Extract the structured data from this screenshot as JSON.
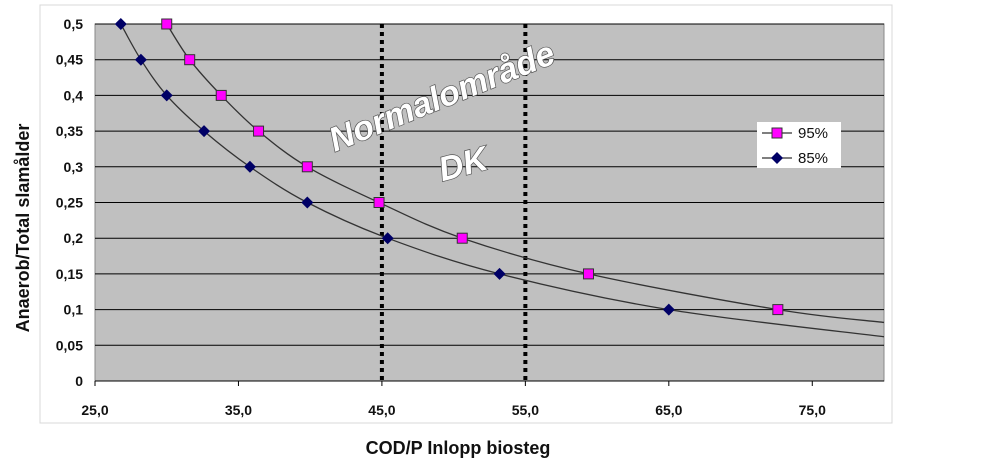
{
  "chart_data": {
    "type": "scatter",
    "title": "",
    "xlabel": "COD/P Inlopp biosteg",
    "ylabel": "Anaerob/Total slamålder",
    "xlim": [
      25,
      80
    ],
    "ylim": [
      0,
      0.5
    ],
    "x_ticks": [
      "25,0",
      "35,0",
      "45,0",
      "55,0",
      "65,0",
      "75,0"
    ],
    "y_ticks": [
      "0",
      "0,05",
      "0,1",
      "0,15",
      "0,2",
      "0,25",
      "0,3",
      "0,35",
      "0,4",
      "0,45",
      "0,5"
    ],
    "grid": "horizontal",
    "legend_position": "right",
    "series": [
      {
        "name": "95%",
        "marker": "square",
        "color": "#ff00ff",
        "points": [
          [
            30.0,
            0.5
          ],
          [
            31.6,
            0.45
          ],
          [
            33.8,
            0.4
          ],
          [
            36.4,
            0.35
          ],
          [
            39.8,
            0.3
          ],
          [
            44.8,
            0.25
          ],
          [
            50.6,
            0.2
          ],
          [
            59.4,
            0.15
          ],
          [
            72.6,
            0.1
          ]
        ],
        "curve_end": [
          80,
          0.082
        ]
      },
      {
        "name": "85%",
        "marker": "diamond",
        "color": "#000066",
        "points": [
          [
            26.8,
            0.5
          ],
          [
            28.2,
            0.45
          ],
          [
            30.0,
            0.4
          ],
          [
            32.6,
            0.35
          ],
          [
            35.8,
            0.3
          ],
          [
            39.8,
            0.25
          ],
          [
            45.4,
            0.2
          ],
          [
            53.2,
            0.15
          ],
          [
            65.0,
            0.1
          ]
        ],
        "curve_end": [
          80,
          0.062
        ]
      }
    ],
    "vlines": [
      45,
      55
    ],
    "annotation": [
      "Normalområde",
      "DK"
    ]
  }
}
